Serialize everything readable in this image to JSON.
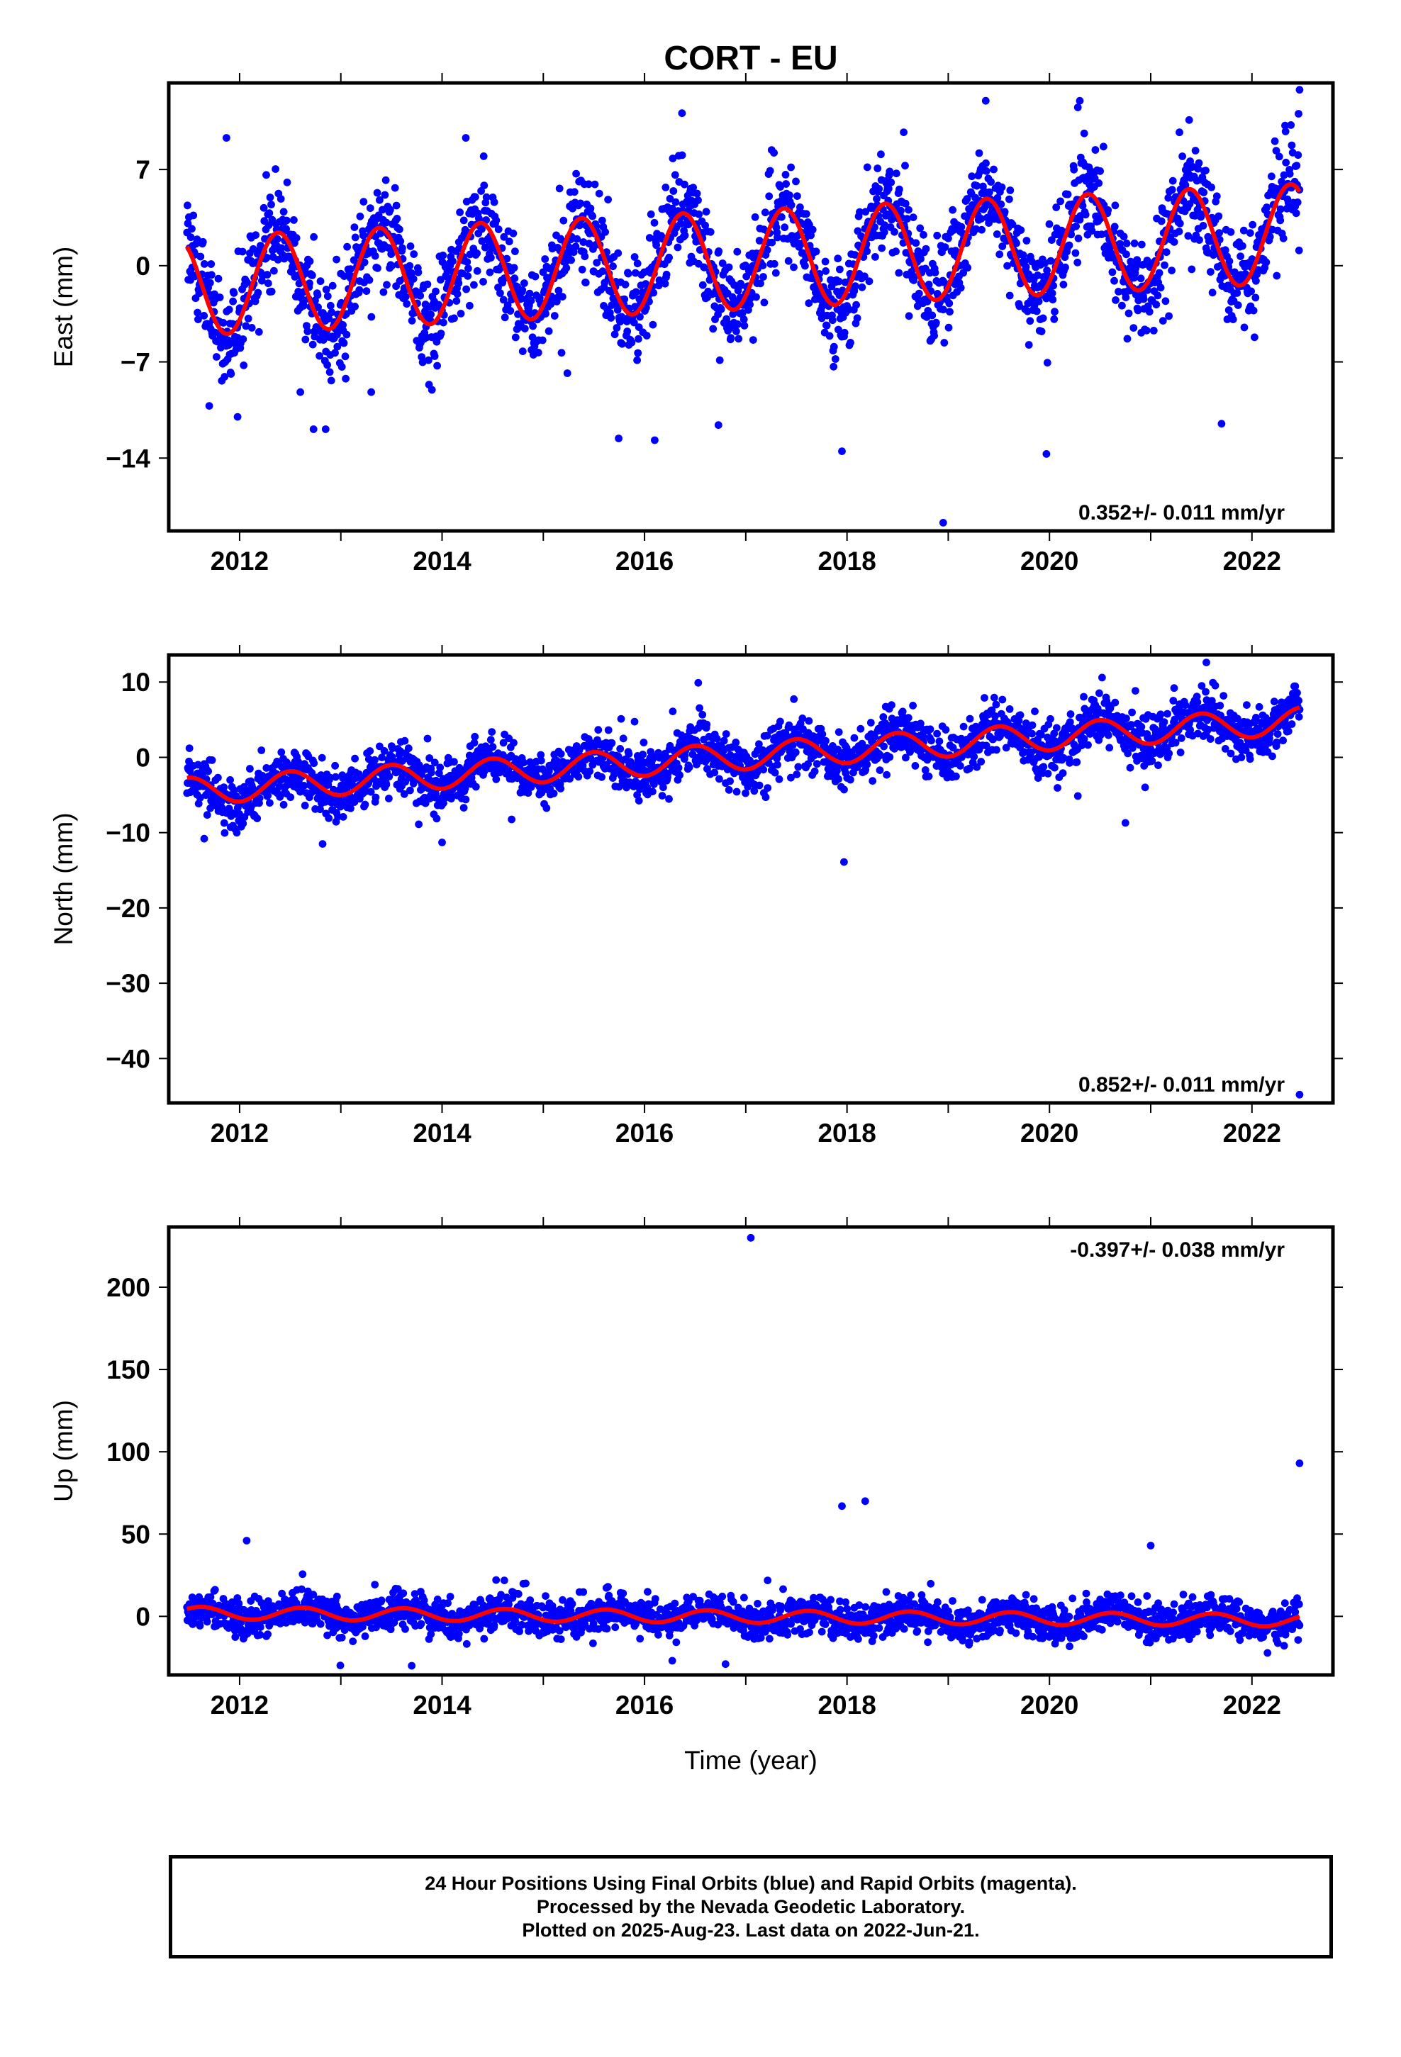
{
  "title": "CORT - EU",
  "xlabel": "Time (year)",
  "caption": {
    "line1": "24 Hour Positions Using Final Orbits (blue) and Rapid Orbits (magenta).",
    "line2": "Processed by the Nevada Geodetic Laboratory.",
    "line3": "Plotted on 2025-Aug-23. Last data on 2022-Jun-21."
  },
  "colors": {
    "points": "#0000ff",
    "fit": "#ff0000",
    "axes": "#000000",
    "background": "#ffffff"
  },
  "chart_data": [
    {
      "type": "scatter",
      "component": "east",
      "ylabel": "East (mm)",
      "xlim": [
        2011.3,
        2022.8
      ],
      "ylim": [
        -19.3,
        13.3
      ],
      "xticks": [
        2012,
        2014,
        2016,
        2018,
        2020,
        2022
      ],
      "xtick_labels": [
        "2012",
        "2014",
        "2016",
        "2018",
        "2020",
        "2022"
      ],
      "yticks": [
        -14,
        -7,
        0,
        7
      ],
      "ytick_labels": [
        "−14",
        "−7",
        "0",
        "7"
      ],
      "rate_label": "0.352+/- 0.011 mm/yr",
      "rate_position": "bottom-right",
      "trend": {
        "rate_mm_per_yr": 0.352,
        "reference_value": -1.5,
        "reference_year": 2011.5
      },
      "seasonal": {
        "annual_amplitude_mm": 3.6,
        "annual_peak_fraction": 0.38
      },
      "scatter_sd_mm": 1.8,
      "data_span": [
        2011.48,
        2022.47
      ],
      "outliers": [
        {
          "x": 2011.87,
          "y": 9.3
        },
        {
          "x": 2011.7,
          "y": -10.2
        },
        {
          "x": 2011.98,
          "y": -11.0
        },
        {
          "x": 2012.6,
          "y": -9.2
        },
        {
          "x": 2012.73,
          "y": -11.9
        },
        {
          "x": 2012.85,
          "y": -11.9
        },
        {
          "x": 2013.3,
          "y": -9.2
        },
        {
          "x": 2016.1,
          "y": -12.7
        },
        {
          "x": 2016.37,
          "y": 11.1
        },
        {
          "x": 2016.73,
          "y": -11.6
        },
        {
          "x": 2017.95,
          "y": -13.5
        },
        {
          "x": 2018.95,
          "y": -18.7
        },
        {
          "x": 2019.37,
          "y": 12.0
        },
        {
          "x": 2019.97,
          "y": -13.7
        },
        {
          "x": 2020.3,
          "y": 12.0
        },
        {
          "x": 2021.38,
          "y": 10.6
        },
        {
          "x": 2021.7,
          "y": -11.5
        },
        {
          "x": 2022.47,
          "y": 12.8
        }
      ]
    },
    {
      "type": "scatter",
      "component": "north",
      "ylabel": "North (mm)",
      "xlim": [
        2011.3,
        2022.8
      ],
      "ylim": [
        -45.9,
        13.6
      ],
      "xticks": [
        2012,
        2014,
        2016,
        2018,
        2020,
        2022
      ],
      "xtick_labels": [
        "2012",
        "2014",
        "2016",
        "2018",
        "2020",
        "2022"
      ],
      "yticks": [
        -40,
        -30,
        -20,
        -10,
        0,
        10
      ],
      "ytick_labels": [
        "−40",
        "−30",
        "−20",
        "−10",
        "0",
        "10"
      ],
      "rate_label": "0.852+/- 0.011 mm/yr",
      "rate_position": "bottom-right",
      "trend": {
        "rate_mm_per_yr": 0.852,
        "reference_value": -4.5,
        "reference_year": 2011.5
      },
      "seasonal": {
        "annual_amplitude_mm": 1.8,
        "annual_peak_fraction": 0.5
      },
      "scatter_sd_mm": 1.6,
      "data_span": [
        2011.48,
        2022.47
      ],
      "outliers": [
        {
          "x": 2011.65,
          "y": -10.8
        },
        {
          "x": 2012.82,
          "y": -11.5
        },
        {
          "x": 2014.0,
          "y": -11.3
        },
        {
          "x": 2016.53,
          "y": 9.9
        },
        {
          "x": 2017.97,
          "y": -13.9
        },
        {
          "x": 2020.75,
          "y": -8.7
        },
        {
          "x": 2021.55,
          "y": 12.6
        },
        {
          "x": 2022.47,
          "y": -44.8
        }
      ]
    },
    {
      "type": "scatter",
      "component": "up",
      "ylabel": "Up (mm)",
      "xlim": [
        2011.3,
        2022.8
      ],
      "ylim": [
        -35.6,
        236.6
      ],
      "xticks": [
        2012,
        2014,
        2016,
        2018,
        2020,
        2022
      ],
      "xtick_labels": [
        "2012",
        "2014",
        "2016",
        "2018",
        "2020",
        "2022"
      ],
      "yticks": [
        0,
        50,
        100,
        150,
        200
      ],
      "ytick_labels": [
        "0",
        "50",
        "100",
        "150",
        "200"
      ],
      "rate_label": "-0.397+/- 0.038 mm/yr",
      "rate_position": "top-right",
      "trend": {
        "rate_mm_per_yr": -0.397,
        "reference_value": 2.0,
        "reference_year": 2011.5
      },
      "seasonal": {
        "annual_amplitude_mm": 3.8,
        "annual_peak_fraction": 0.62
      },
      "scatter_sd_mm": 5.5,
      "data_span": [
        2011.48,
        2022.47
      ],
      "outliers": [
        {
          "x": 2012.07,
          "y": 46.0
        },
        {
          "x": 2013.7,
          "y": -30.0
        },
        {
          "x": 2016.8,
          "y": -29.0
        },
        {
          "x": 2017.05,
          "y": 230.0
        },
        {
          "x": 2017.95,
          "y": 67.0
        },
        {
          "x": 2018.18,
          "y": 70.0
        },
        {
          "x": 2021.0,
          "y": 43.0
        },
        {
          "x": 2022.47,
          "y": 93.0
        }
      ]
    }
  ]
}
